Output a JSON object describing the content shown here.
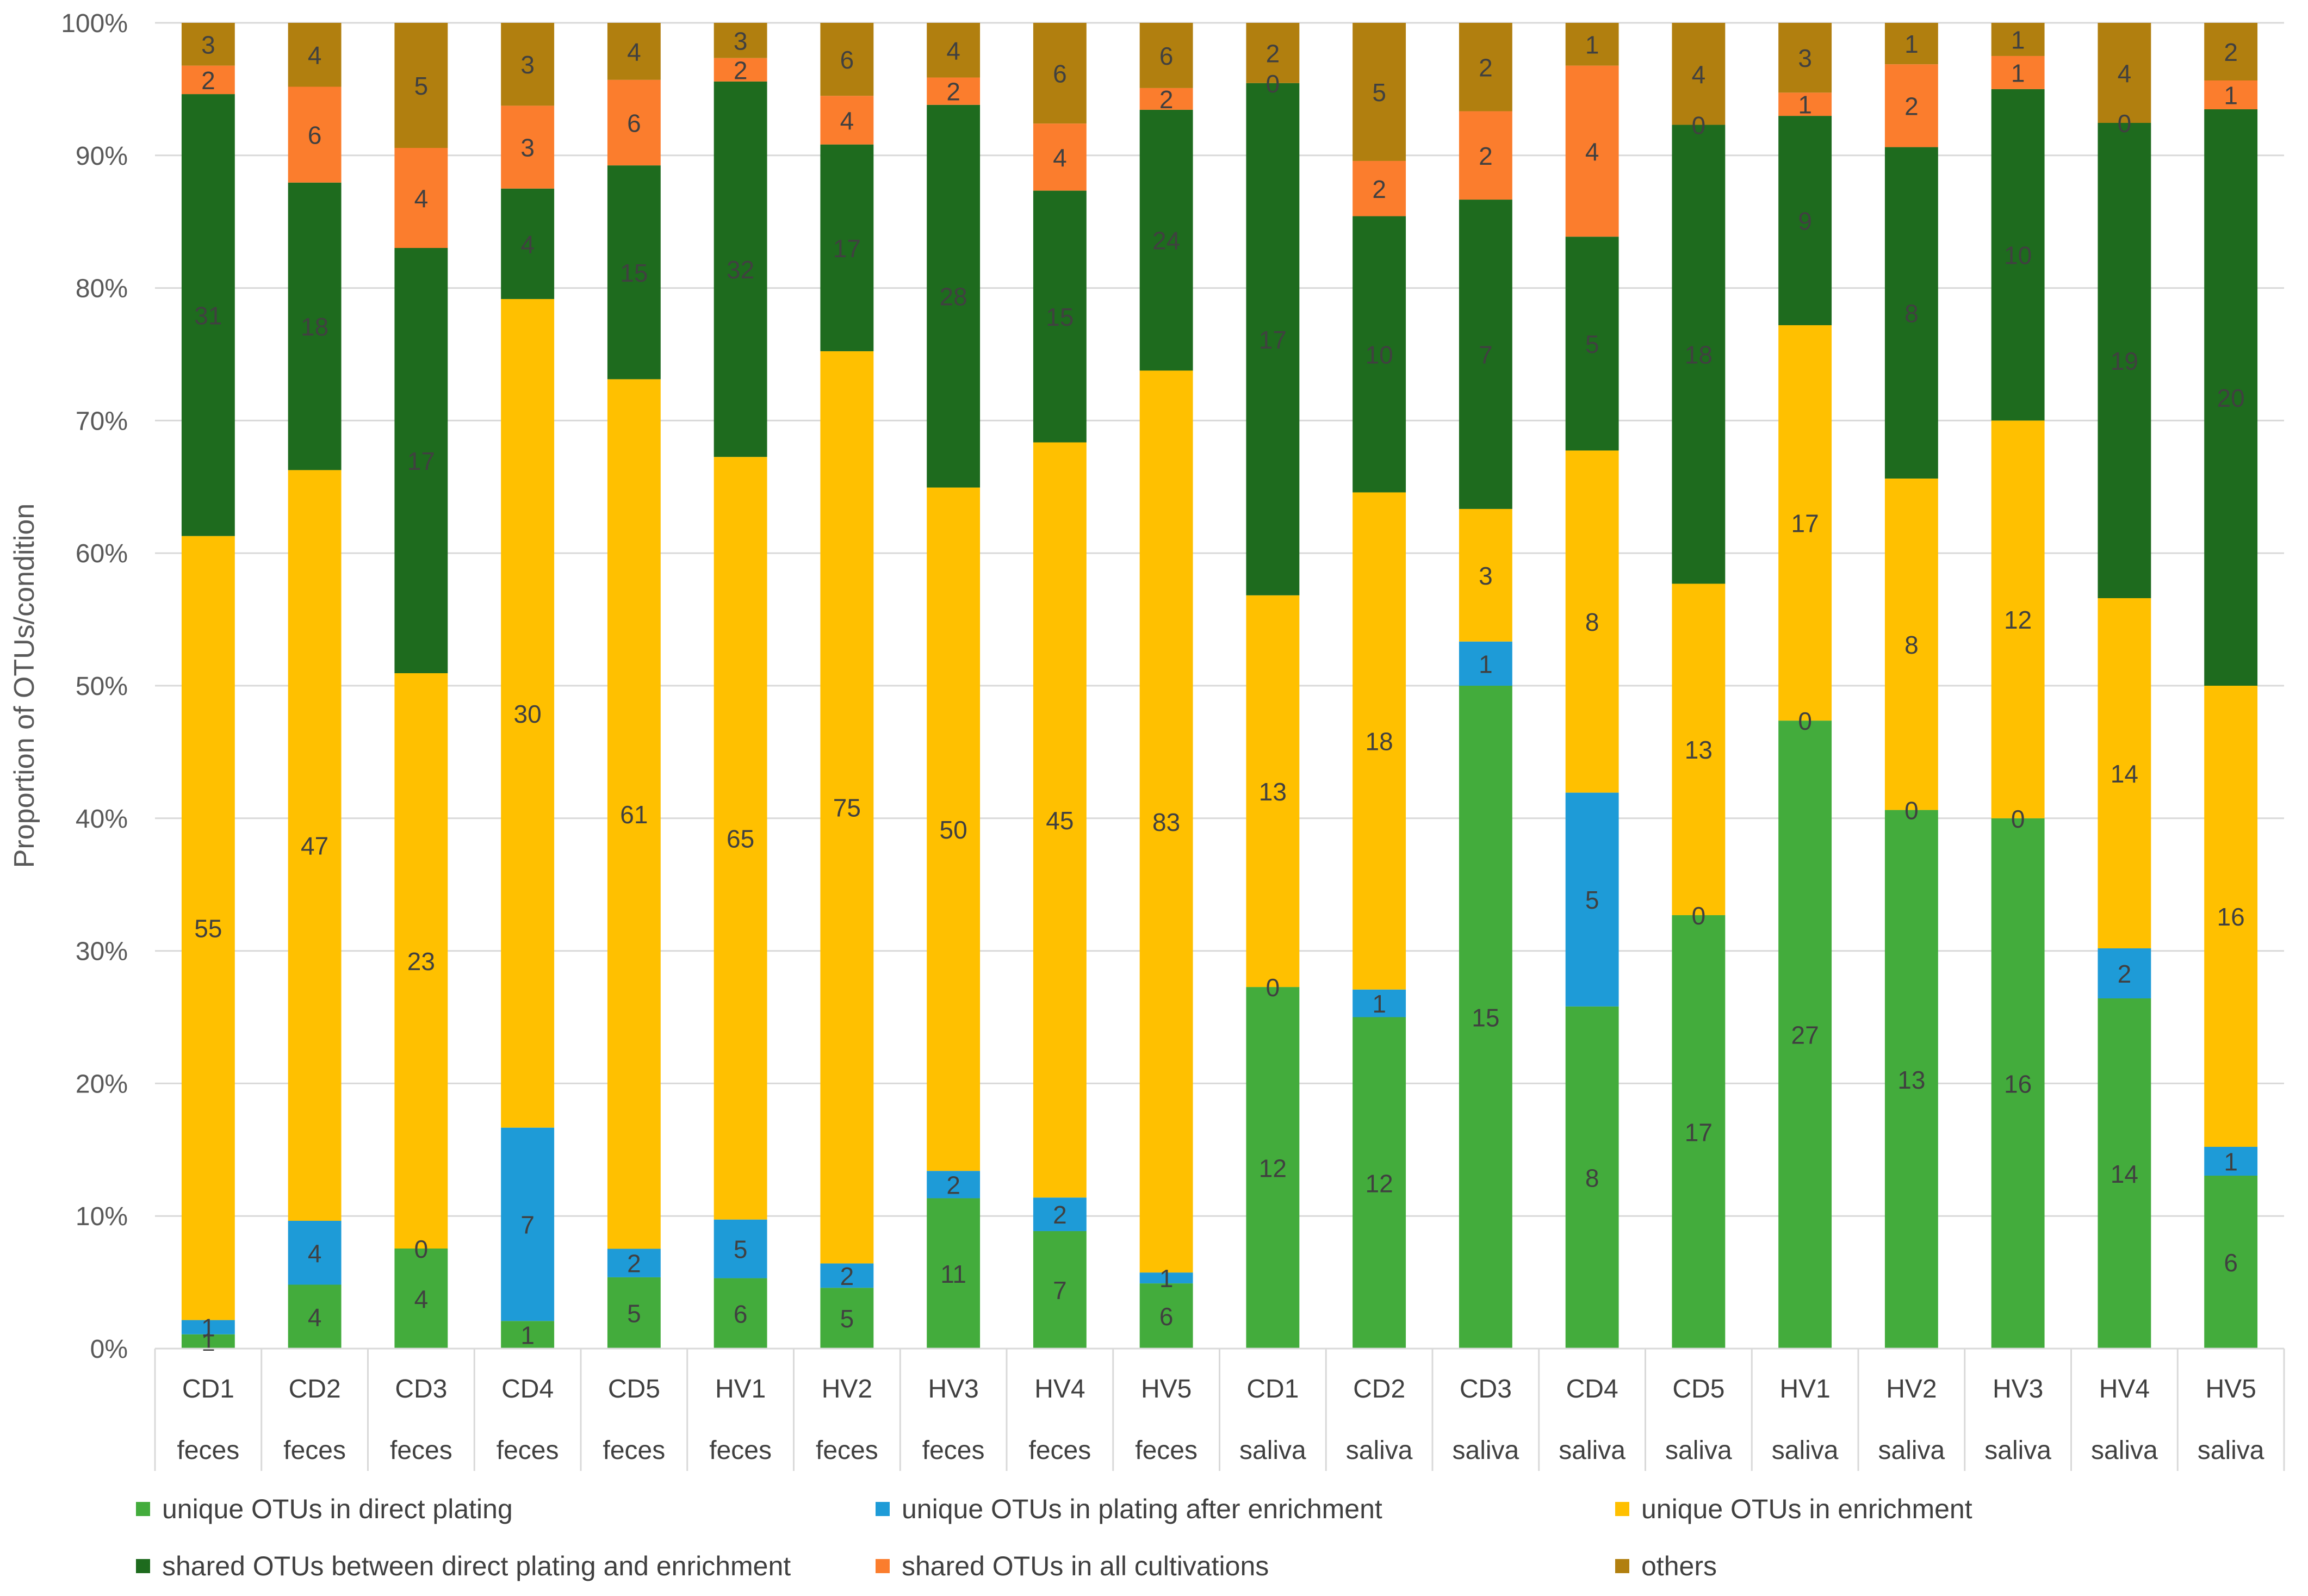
{
  "chart_data": {
    "type": "stacked-bar-100",
    "title": "",
    "xlabel": "",
    "ylabel": "Proportion of OTUs/condition",
    "ylim": [
      0,
      100
    ],
    "yticks": [
      "0%",
      "10%",
      "20%",
      "30%",
      "40%",
      "50%",
      "60%",
      "70%",
      "80%",
      "90%",
      "100%"
    ],
    "grid": true,
    "legend_position": "bottom",
    "categories": [
      "CD1",
      "CD2",
      "CD3",
      "CD4",
      "CD5",
      "HV1",
      "HV2",
      "HV3",
      "HV4",
      "HV5",
      "CD1",
      "CD2",
      "CD3",
      "CD4",
      "CD5",
      "HV1",
      "HV2",
      "HV3",
      "HV4",
      "HV5"
    ],
    "groups": [
      "feces",
      "feces",
      "feces",
      "feces",
      "feces",
      "feces",
      "feces",
      "feces",
      "feces",
      "feces",
      "saliva",
      "saliva",
      "saliva",
      "saliva",
      "saliva",
      "saliva",
      "saliva",
      "saliva",
      "saliva",
      "saliva"
    ],
    "series": [
      {
        "name": "unique OTUs in direct plating",
        "color": "#43ac3c",
        "values": [
          1,
          4,
          4,
          1,
          5,
          6,
          5,
          11,
          7,
          6,
          12,
          12,
          15,
          8,
          17,
          27,
          13,
          16,
          14,
          6
        ]
      },
      {
        "name": "unique OTUs in plating after enrichment",
        "color": "#1e9bd7",
        "values": [
          1,
          4,
          0,
          7,
          2,
          5,
          2,
          2,
          2,
          1,
          0,
          1,
          1,
          5,
          0,
          0,
          0,
          0,
          2,
          1
        ]
      },
      {
        "name": "unique OTUs in enrichment",
        "color": "#ffc000",
        "values": [
          55,
          47,
          23,
          30,
          61,
          65,
          75,
          50,
          45,
          83,
          13,
          18,
          3,
          8,
          13,
          17,
          8,
          12,
          14,
          16
        ]
      },
      {
        "name": "shared OTUs between direct plating and enrichment",
        "color": "#1e6b1e",
        "values": [
          31,
          18,
          17,
          4,
          15,
          32,
          17,
          28,
          15,
          24,
          17,
          10,
          7,
          5,
          18,
          9,
          8,
          10,
          19,
          20
        ]
      },
      {
        "name": "shared OTUs in all cultivations",
        "color": "#fb7d2d",
        "values": [
          2,
          6,
          4,
          3,
          6,
          2,
          4,
          2,
          4,
          2,
          0,
          2,
          2,
          4,
          0,
          1,
          2,
          1,
          0,
          1
        ]
      },
      {
        "name": "others",
        "color": "#b17f0f",
        "values": [
          3,
          4,
          5,
          3,
          4,
          3,
          6,
          4,
          6,
          6,
          2,
          5,
          2,
          1,
          4,
          3,
          1,
          1,
          4,
          2
        ]
      }
    ]
  }
}
